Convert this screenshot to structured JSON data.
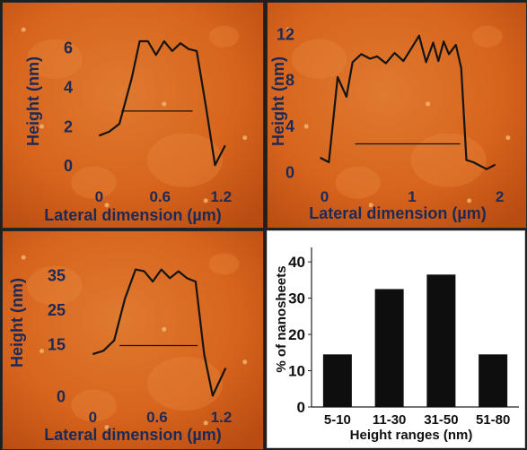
{
  "colors": {
    "afm_background": "#d7641d",
    "afm_highlight": "#f2b36e",
    "afm_shadow": "#b84c12",
    "trace": "#141414",
    "label": "#1d2a55",
    "bar": "#0e0e0e"
  },
  "chart_data": [
    {
      "type": "line",
      "panel": "top-left",
      "xlabel": "Lateral dimension (µm)",
      "ylabel": "Height (nm)",
      "xlim": [
        -0.1,
        1.33
      ],
      "ylim": [
        -0.4,
        6.8
      ],
      "xticks": [
        "0",
        "0.6",
        "1.2"
      ],
      "yticks": [
        "0",
        "2",
        "4",
        "6"
      ],
      "x": [
        0.0,
        0.1,
        0.2,
        0.32,
        0.4,
        0.48,
        0.56,
        0.64,
        0.72,
        0.8,
        0.88,
        0.96,
        1.05,
        1.14,
        1.24
      ],
      "y": [
        1.5,
        1.7,
        2.1,
        4.4,
        6.3,
        6.3,
        5.6,
        6.3,
        5.8,
        6.2,
        5.9,
        5.8,
        3.0,
        0.0,
        1.0
      ],
      "annotation_line": {
        "x": [
          0.22,
          0.92
        ],
        "y": [
          2.75,
          2.75
        ]
      }
    },
    {
      "type": "line",
      "panel": "top-right",
      "xlabel": "Lateral dimension (µm)",
      "ylabel": "Height (nm)",
      "xlim": [
        -0.22,
        2.25
      ],
      "ylim": [
        -0.6,
        12.8
      ],
      "xticks": [
        "0",
        "1",
        "2"
      ],
      "yticks": [
        "0",
        "4",
        "8",
        "12"
      ],
      "x": [
        -0.05,
        0.05,
        0.15,
        0.25,
        0.32,
        0.42,
        0.52,
        0.6,
        0.7,
        0.8,
        0.9,
        1.0,
        1.08,
        1.16,
        1.24,
        1.3,
        1.36,
        1.42,
        1.5,
        1.56,
        1.62,
        1.7,
        1.85,
        1.95
      ],
      "y": [
        1.2,
        0.8,
        8.2,
        6.5,
        9.5,
        10.2,
        9.8,
        10.0,
        9.4,
        10.3,
        9.6,
        10.8,
        11.8,
        9.5,
        11.2,
        9.6,
        11.3,
        10.2,
        11.0,
        9.0,
        1.0,
        0.8,
        0.2,
        0.6
      ],
      "annotation_line": {
        "x": [
          0.35,
          1.55
        ],
        "y": [
          2.4,
          2.4
        ]
      }
    },
    {
      "type": "line",
      "panel": "bottom-left",
      "xlabel": "Lateral dimension (µm)",
      "ylabel": "Height (nm)",
      "xlim": [
        -0.12,
        1.33
      ],
      "ylim": [
        -3,
        39
      ],
      "xticks": [
        "0",
        "0.6",
        "1.2"
      ],
      "yticks": [
        "0",
        "15",
        "25",
        "35"
      ],
      "x": [
        0.0,
        0.1,
        0.2,
        0.3,
        0.4,
        0.48,
        0.56,
        0.64,
        0.72,
        0.8,
        0.88,
        0.96,
        1.04,
        1.12,
        1.24
      ],
      "y": [
        12,
        13,
        16,
        28,
        36.5,
        36,
        33,
        36.5,
        34,
        36,
        34,
        33,
        12,
        0,
        8
      ],
      "annotation_line": {
        "x": [
          0.25,
          0.98
        ],
        "y": [
          14.5,
          14.5
        ]
      }
    },
    {
      "type": "bar",
      "panel": "bottom-right",
      "categories": [
        "5-10",
        "11-30",
        "31-50",
        "51-80"
      ],
      "values": [
        14.5,
        32.5,
        36.5,
        14.5
      ],
      "xlabel": "Height ranges (nm)",
      "ylabel": "% of nanosheets",
      "ylim": [
        0,
        43
      ],
      "yticks": [
        "0",
        "10",
        "20",
        "30",
        "40"
      ],
      "grid": false
    }
  ]
}
